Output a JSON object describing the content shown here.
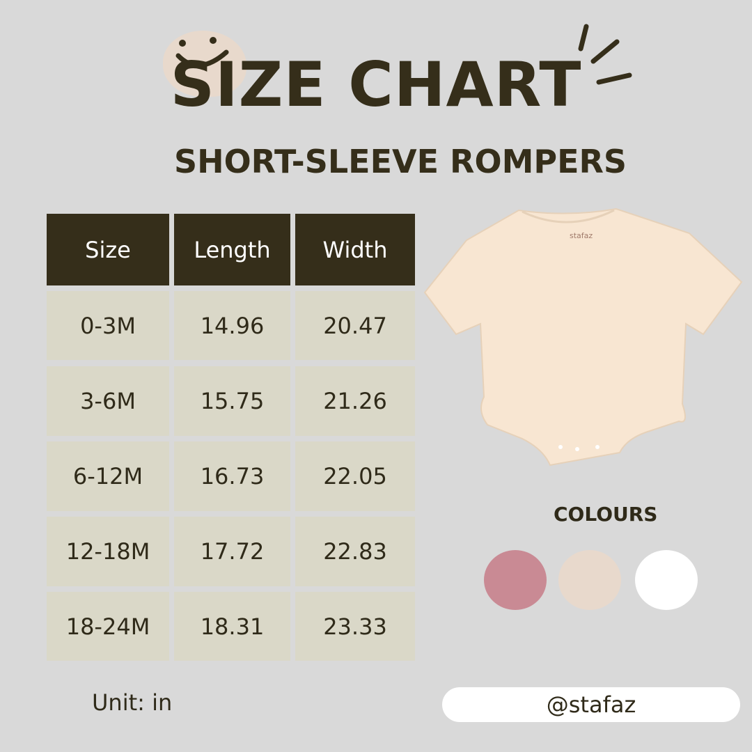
{
  "header": {
    "title": "SIZE CHART",
    "subtitle": "SHORT-SLEEVE ROMPERS",
    "icon": "smiley-face-icon"
  },
  "table": {
    "columns": [
      "Size",
      "Length",
      "Width"
    ],
    "rows": [
      [
        "0-3M",
        "14.96",
        "20.47"
      ],
      [
        "3-6M",
        "15.75",
        "21.26"
      ],
      [
        "6-12M",
        "16.73",
        "22.05"
      ],
      [
        "12-18M",
        "17.72",
        "22.83"
      ],
      [
        "18-24M",
        "18.31",
        "23.33"
      ]
    ]
  },
  "product": {
    "brand_tag": "stafaz",
    "image": "short-sleeve-romper"
  },
  "colours": {
    "label": "COLOURS",
    "swatches": [
      "#c98a94",
      "#e8d9cc",
      "#ffffff"
    ]
  },
  "footer": {
    "unit": "Unit: in",
    "handle": "@stafaz"
  }
}
